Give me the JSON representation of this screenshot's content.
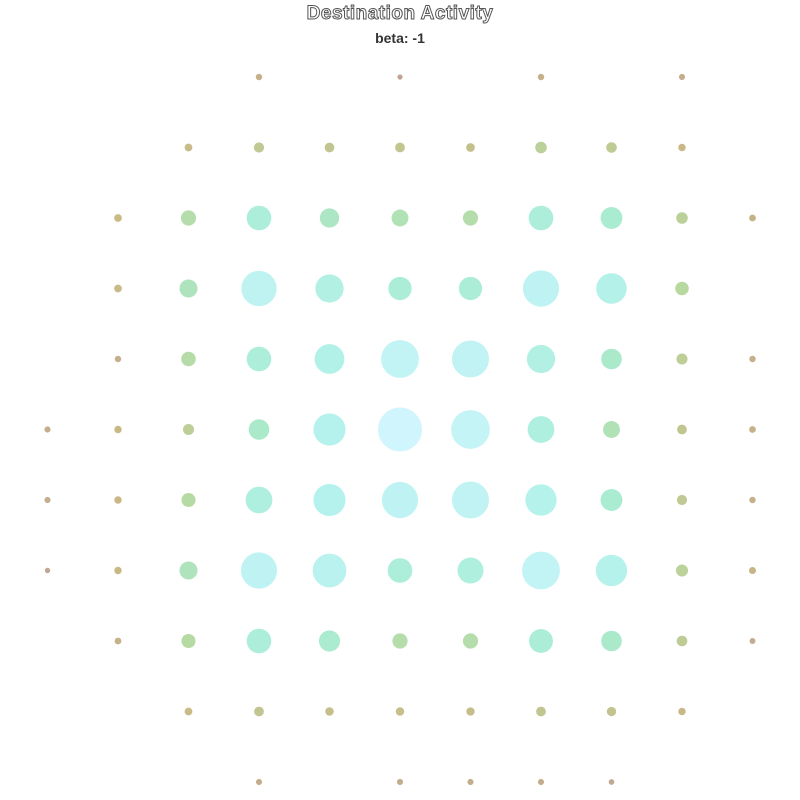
{
  "chart_data": {
    "type": "scatter",
    "title": "Destination Activity",
    "subtitle": "beta: -1",
    "x": [
      0,
      1,
      2,
      3,
      4,
      5,
      6,
      7,
      8,
      9,
      10
    ],
    "y": [
      0,
      1,
      2,
      3,
      4,
      5,
      6,
      7,
      8,
      9,
      10
    ],
    "values": [
      [
        null,
        null,
        null,
        0.22,
        null,
        0.12,
        null,
        0.22,
        null,
        0.2,
        null
      ],
      [
        null,
        null,
        0.3,
        0.42,
        0.4,
        0.4,
        0.35,
        0.48,
        0.44,
        0.28,
        null
      ],
      [
        null,
        0.3,
        0.62,
        0.92,
        0.76,
        0.68,
        0.62,
        0.92,
        0.84,
        0.48,
        0.24
      ],
      [
        null,
        0.3,
        0.72,
        1.2,
        1.02,
        0.88,
        0.88,
        1.22,
        1.08,
        0.56,
        null
      ],
      [
        null,
        0.22,
        0.6,
        0.92,
        1.06,
        1.26,
        1.24,
        1.02,
        0.8,
        0.46,
        0.22
      ],
      [
        0.2,
        0.28,
        0.46,
        0.8,
        1.12,
        1.4,
        1.28,
        0.98,
        0.68,
        0.4,
        0.24
      ],
      [
        0.2,
        0.28,
        0.58,
        0.98,
        1.12,
        1.22,
        1.24,
        1.1,
        0.84,
        0.42,
        0.22
      ],
      [
        0.14,
        0.28,
        0.72,
        1.22,
        1.16,
        0.92,
        0.96,
        1.26,
        1.1,
        0.5,
        0.26
      ],
      [
        null,
        0.24,
        0.58,
        0.92,
        0.82,
        0.62,
        0.62,
        0.9,
        0.8,
        0.44,
        0.18
      ],
      [
        null,
        null,
        0.3,
        0.4,
        0.34,
        0.34,
        0.33,
        0.4,
        0.38,
        0.28,
        null
      ],
      [
        null,
        null,
        null,
        0.2,
        null,
        0.2,
        0.2,
        0.2,
        0.16,
        null,
        null
      ]
    ],
    "color_scale": [
      "#b48d9b",
      "#c6b47f",
      "#b3d79b",
      "#a5ebd0",
      "#b1f1ec",
      "#cff4fc"
    ],
    "size_range": [
      0,
      1.4
    ],
    "legend": "none",
    "grid": false
  }
}
